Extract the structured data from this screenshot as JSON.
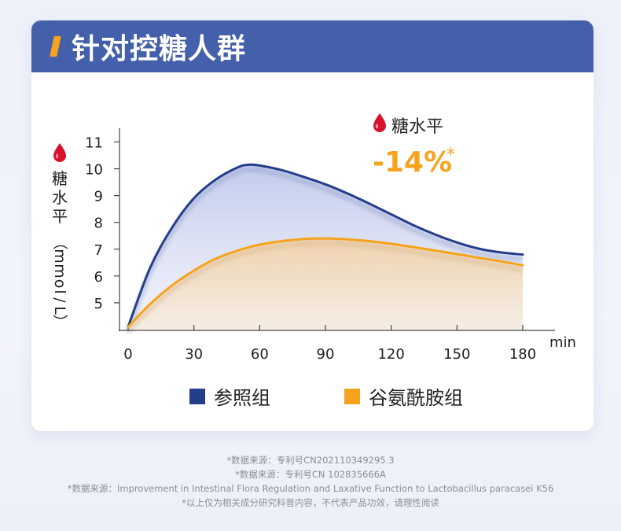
{
  "header": {
    "title": "针对控糖人群"
  },
  "callout": {
    "label": "糖水平",
    "value": "-14%",
    "asterisk": "*"
  },
  "chart_data": {
    "type": "line",
    "title": "",
    "xlabel": "min",
    "ylabel": "糖水平（mmol/L）",
    "ylabel_chars": [
      "糖",
      "水",
      "平",
      "（",
      "m",
      "m",
      "o",
      "l",
      "/",
      "L",
      "）"
    ],
    "x_ticks": [
      0,
      30,
      60,
      90,
      120,
      150,
      180
    ],
    "y_ticks": [
      5,
      6,
      7,
      8,
      9,
      10,
      11
    ],
    "xlim": [
      0,
      180
    ],
    "ylim": [
      4,
      11.6
    ],
    "x": [
      0,
      10,
      20,
      30,
      40,
      50,
      55,
      60,
      70,
      80,
      90,
      100,
      110,
      120,
      130,
      140,
      150,
      160,
      170,
      180
    ],
    "series": [
      {
        "name": "参照组",
        "color": "#253e8a",
        "values": [
          4.1,
          6.3,
          7.8,
          8.9,
          9.6,
          10.05,
          10.15,
          10.12,
          9.95,
          9.7,
          9.42,
          9.08,
          8.7,
          8.3,
          7.9,
          7.55,
          7.25,
          7.02,
          6.88,
          6.8
        ]
      },
      {
        "name": "谷氨酰胺组",
        "color": "#f5a31c",
        "values": [
          4.1,
          4.95,
          5.65,
          6.2,
          6.65,
          6.95,
          7.07,
          7.17,
          7.3,
          7.38,
          7.4,
          7.37,
          7.3,
          7.2,
          7.08,
          6.95,
          6.82,
          6.68,
          6.55,
          6.4
        ]
      }
    ]
  },
  "legend": [
    {
      "label": "参照组",
      "color": "#253e8a"
    },
    {
      "label": "谷氨酰胺组",
      "color": "#f5a31c"
    }
  ],
  "footnotes": [
    "*数据来源：专利号CN202110349295.3",
    "*数据来源：专利号CN 102835666A",
    "*数据来源：Improvement in Intestinal Flora Regulation and Laxative Function to Lactobacillus paracasei K56",
    "*以上仅为相关成分研究科普内容，不代表产品功效，请理性阅读"
  ],
  "colors": {
    "header_bg": "#4560aa",
    "accent_orange": "#f6a31d",
    "drop_red": "#d8122a",
    "axis": "#333333"
  }
}
